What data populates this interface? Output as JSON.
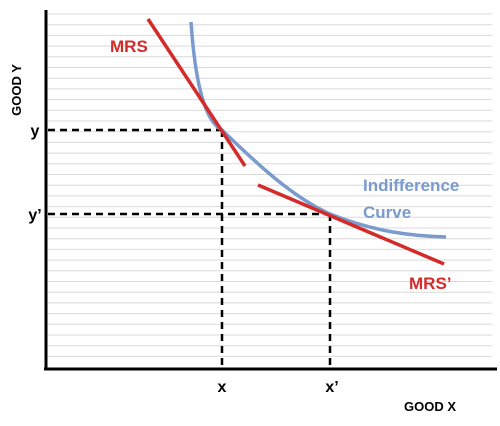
{
  "axes": {
    "y_title": "GOOD Y",
    "x_title": "GOOD X"
  },
  "ticks": {
    "y1": "y",
    "y2": "y’",
    "x1": "x",
    "x2": "x’"
  },
  "labels": {
    "mrs1": "MRS",
    "mrs2": "MRS’",
    "curve_line1": "Indifference",
    "curve_line2": "Curve"
  },
  "colors": {
    "mrs": "#d42a2a",
    "curve": "#7a9bcc",
    "axis": "#000000",
    "grid": "#d9d9d9"
  },
  "grid": true
}
